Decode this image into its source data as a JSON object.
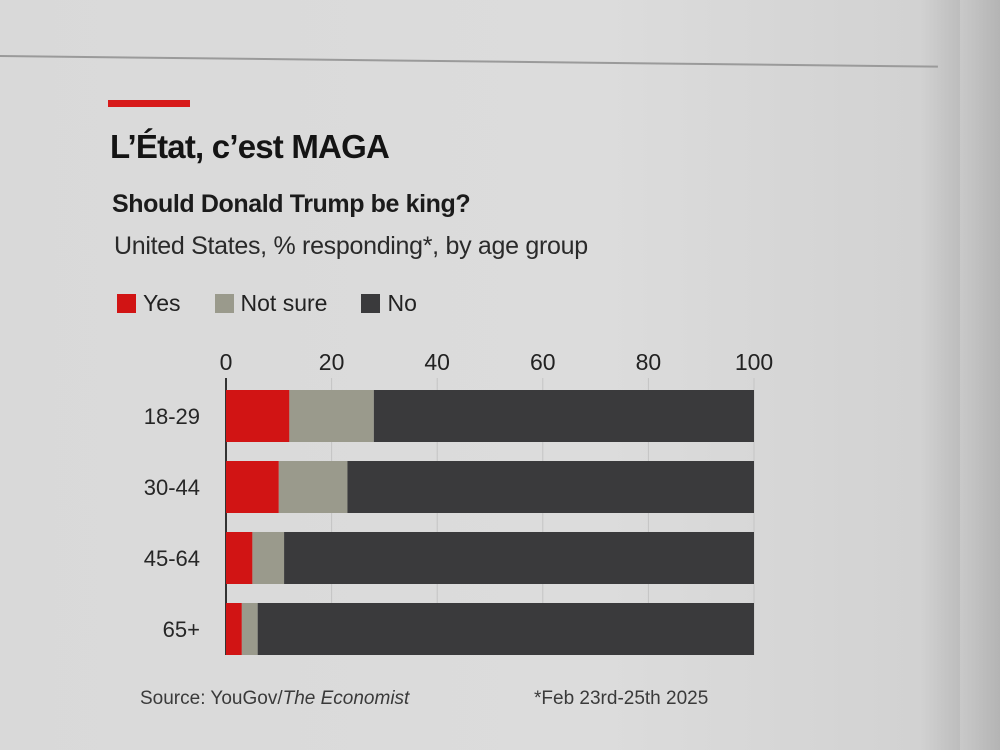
{
  "header": {
    "title": "L’État, c’est MAGA",
    "subtitle": "Should Donald Trump be king?",
    "description": "United States, % responding*, by age group"
  },
  "legend": [
    {
      "label": "Yes",
      "color": "#d11414"
    },
    {
      "label": "Not sure",
      "color": "#9a9a8c"
    },
    {
      "label": "No",
      "color": "#3a3a3c"
    }
  ],
  "footer": {
    "source_prefix": "Source: YouGov/",
    "source_italic": "The Economist",
    "note": "*Feb 23rd-25th 2025"
  },
  "chart_data": {
    "type": "bar",
    "orientation": "horizontal",
    "stacked": true,
    "title": "L’État, c’est MAGA",
    "subtitle": "Should Donald Trump be king?",
    "xlabel": "",
    "ylabel": "",
    "xlim": [
      0,
      100
    ],
    "xticks": [
      0,
      20,
      40,
      60,
      80,
      100
    ],
    "grid": true,
    "legend_position": "top-left",
    "categories": [
      "18-29",
      "30-44",
      "45-64",
      "65+"
    ],
    "series": [
      {
        "name": "Yes",
        "color": "#d11414",
        "values": [
          12,
          10,
          5,
          3
        ]
      },
      {
        "name": "Not sure",
        "color": "#9a9a8c",
        "values": [
          16,
          13,
          6,
          3
        ]
      },
      {
        "name": "No",
        "color": "#3a3a3c",
        "values": [
          72,
          77,
          89,
          94
        ]
      }
    ]
  }
}
